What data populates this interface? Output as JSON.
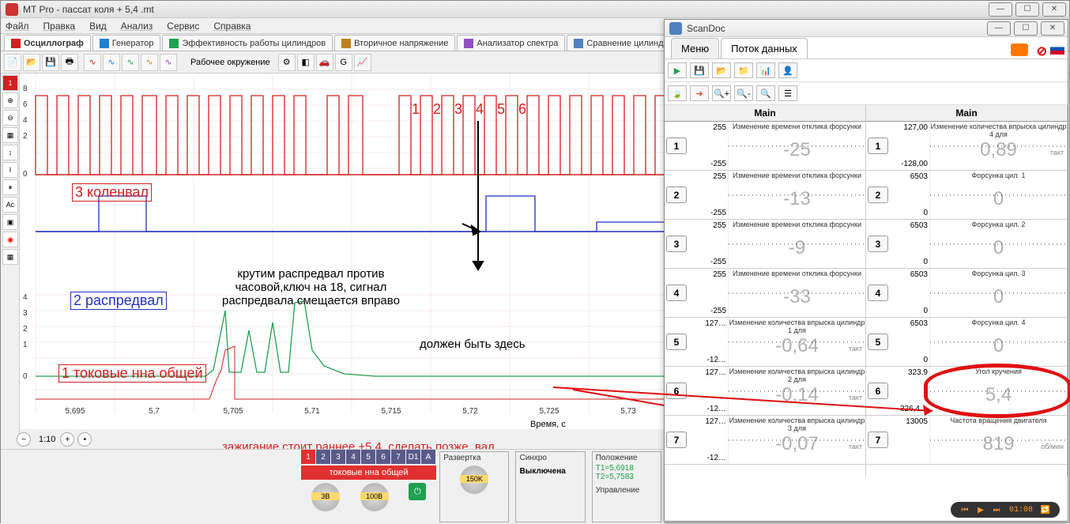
{
  "mtpro": {
    "title": "MT Pro - пассат коля  + 5,4 .mt",
    "menus": [
      "Файл",
      "Правка",
      "Вид",
      "Анализ",
      "Сервис",
      "Справка"
    ],
    "tabs": [
      {
        "label": "Осциллограф",
        "active": true
      },
      {
        "label": "Генератор"
      },
      {
        "label": "Эффективность работы цилиндров"
      },
      {
        "label": "Вторичное напряжение"
      },
      {
        "label": "Анализатор спектра"
      },
      {
        "label": "Сравнение цилиндров"
      }
    ],
    "toolbar_center": "Рабочее окружение",
    "x_axis_label": "Время, с",
    "x_ticks": [
      "5,695",
      "5,7",
      "5,705",
      "5,71",
      "5,715",
      "5,72",
      "5,725",
      "5,73"
    ],
    "zoom_ratio": "1:10",
    "traces": {
      "trace3": {
        "label": "3 коленвал",
        "color": "#d02020"
      },
      "trace2": {
        "label": "2 распредвал",
        "color": "#2030c0"
      },
      "trace1": {
        "label": "1 токовые нна общей",
        "color": "#d02020"
      }
    },
    "annotations": {
      "count123456": "1 2 3 4 5 6",
      "rotate": "крутим распредвал против\nчасовой,ключ на 18, сигнал\nраспредвала смещается вправо",
      "should_be": "должен быть здесь",
      "ignition": "зажигание стоит раннее +5.4  сделать позже, вал\nраспредвала кртить против часовой"
    },
    "bottom": {
      "channel_nums": [
        "1",
        "2",
        "3",
        "4",
        "5",
        "6",
        "7",
        "D1",
        "A"
      ],
      "channel_name": "токовые нна общей",
      "knob1": "3B",
      "knob2": "100B",
      "razvertka_title": "Развертка",
      "razvertka_val": "150K",
      "sinchro_title": "Синхро",
      "sinchro_val": "Выключена",
      "polozh_title": "Положение",
      "t1": "T1=5,6918",
      "t2": "T2=5,7583",
      "uprav": "Управление"
    }
  },
  "scandoc": {
    "title": "ScanDoc",
    "tabs": [
      "Меню",
      "Поток данных"
    ],
    "col_head": "Main",
    "left_rows": [
      {
        "n": "1",
        "hi": "255",
        "lo": "-255",
        "title": "Изменение времени отклика форсунки",
        "val": "-25",
        "unit": ""
      },
      {
        "n": "2",
        "hi": "255",
        "lo": "-255",
        "title": "Изменение времени отклика форсунки",
        "val": "-13",
        "unit": ""
      },
      {
        "n": "3",
        "hi": "255",
        "lo": "-255",
        "title": "Изменение времени отклика форсунки",
        "val": "-9",
        "unit": ""
      },
      {
        "n": "4",
        "hi": "255",
        "lo": "-255",
        "title": "Изменение времени отклика форсунки",
        "val": "-33",
        "unit": ""
      },
      {
        "n": "5",
        "hi": "127…",
        "lo": "-12…",
        "title": "Изменение количества впрыска цилиндр 1 для",
        "val": "-0,64",
        "unit": "такт"
      },
      {
        "n": "6",
        "hi": "127…",
        "lo": "-12…",
        "title": "Изменение количества впрыска цилиндр 2 для",
        "val": "-0,14",
        "unit": "такт"
      },
      {
        "n": "7",
        "hi": "127…",
        "lo": "-12…",
        "title": "Изменение количества впрыска цилиндр 3 для",
        "val": "-0,07",
        "unit": "такт"
      }
    ],
    "right_rows": [
      {
        "n": "1",
        "hi": "127,00",
        "lo": "-128,00",
        "title": "Изменение количества впрыска цилиндр 4 для",
        "val": "0,89",
        "unit": "такт"
      },
      {
        "n": "2",
        "hi": "6503",
        "lo": "0",
        "title": "Форсунка цил. 1",
        "val": "0",
        "unit": ""
      },
      {
        "n": "3",
        "hi": "6503",
        "lo": "0",
        "title": "Форсунка цил. 2",
        "val": "0",
        "unit": ""
      },
      {
        "n": "4",
        "hi": "6503",
        "lo": "0",
        "title": "Форсунка цил. 3",
        "val": "0",
        "unit": ""
      },
      {
        "n": "5",
        "hi": "6503",
        "lo": "0",
        "title": "Форсунка цил. 4",
        "val": "0",
        "unit": ""
      },
      {
        "n": "6",
        "hi": "323,9",
        "lo": "-326,4…",
        "title": "Угол кручения",
        "val": "5,4",
        "unit": "",
        "highlight": true
      },
      {
        "n": "7",
        "hi": "13005",
        "lo": "",
        "title": "Частота вращения двигателя",
        "val": "819",
        "unit": "об/мин"
      }
    ],
    "player_time": "01:08"
  }
}
